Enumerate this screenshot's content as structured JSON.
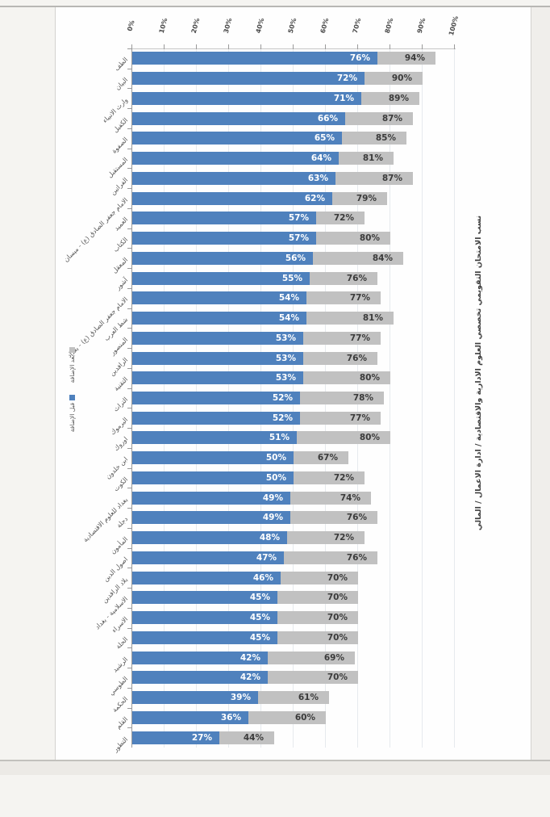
{
  "chart_data": {
    "type": "bar",
    "orientation": "horizontal-rotated-page",
    "title": "نسب الامتحان التقويمي تخصصي العلوم الادارية والاقتصادية / ادارة الاعمال / المالي",
    "x_axis": {
      "ticks": [
        "0%",
        "10%",
        "20%",
        "30%",
        "40%",
        "50%",
        "60%",
        "70%",
        "80%",
        "90%",
        "100%"
      ],
      "min": 0,
      "max": 100,
      "grid": true
    },
    "legend_position": "left-rotated",
    "legend": [
      {
        "label": "بعد الإضافة",
        "color": "#c1c1c1"
      },
      {
        "label": "قبل الإضافة",
        "color": "#4f81bd"
      }
    ],
    "categories": [
      "الطف",
      "البيان",
      "وارث الانبياء",
      "الكفيل",
      "الصفوة",
      "المستقبل",
      "الفراتين",
      "الامام جعفر الصادق (ع) - ميسان",
      "العميد",
      "الكتاب",
      "المعقل",
      "آشور",
      "الامام جعفر الصادق (ع) - بغداد",
      "شط العرب",
      "المنصور",
      "الرافدين",
      "التقنية",
      "التراث",
      "اليرموك",
      "اوروك",
      "ابن خلدون",
      "الكوت",
      "بغداد للعلوم الاقتصادية",
      "دجلة",
      "المأمون",
      "اصول الدين",
      "بلاد الرافدين",
      "الاسلامية - بغداد",
      "الاسراء",
      "الحلة",
      "الرشيد",
      "الطوسي",
      "الحكمة",
      "القلم",
      "التطور"
    ],
    "series": [
      {
        "name": "قبل الإضافة",
        "color": "#4f81bd",
        "label_color": "#ffffff",
        "values": [
          76,
          72,
          71,
          66,
          65,
          64,
          63,
          62,
          57,
          57,
          56,
          55,
          54,
          54,
          53,
          53,
          53,
          52,
          52,
          51,
          50,
          50,
          49,
          49,
          48,
          47,
          46,
          45,
          45,
          45,
          42,
          42,
          39,
          36,
          27
        ]
      },
      {
        "name": "بعد الإضافة",
        "color": "#c1c1c1",
        "label_color": "#3b3b3b",
        "values": [
          94,
          90,
          89,
          87,
          85,
          81,
          87,
          79,
          72,
          80,
          84,
          76,
          77,
          81,
          77,
          76,
          80,
          78,
          77,
          80,
          67,
          72,
          74,
          76,
          72,
          76,
          70,
          70,
          70,
          70,
          69,
          70,
          61,
          60,
          44
        ]
      }
    ]
  }
}
